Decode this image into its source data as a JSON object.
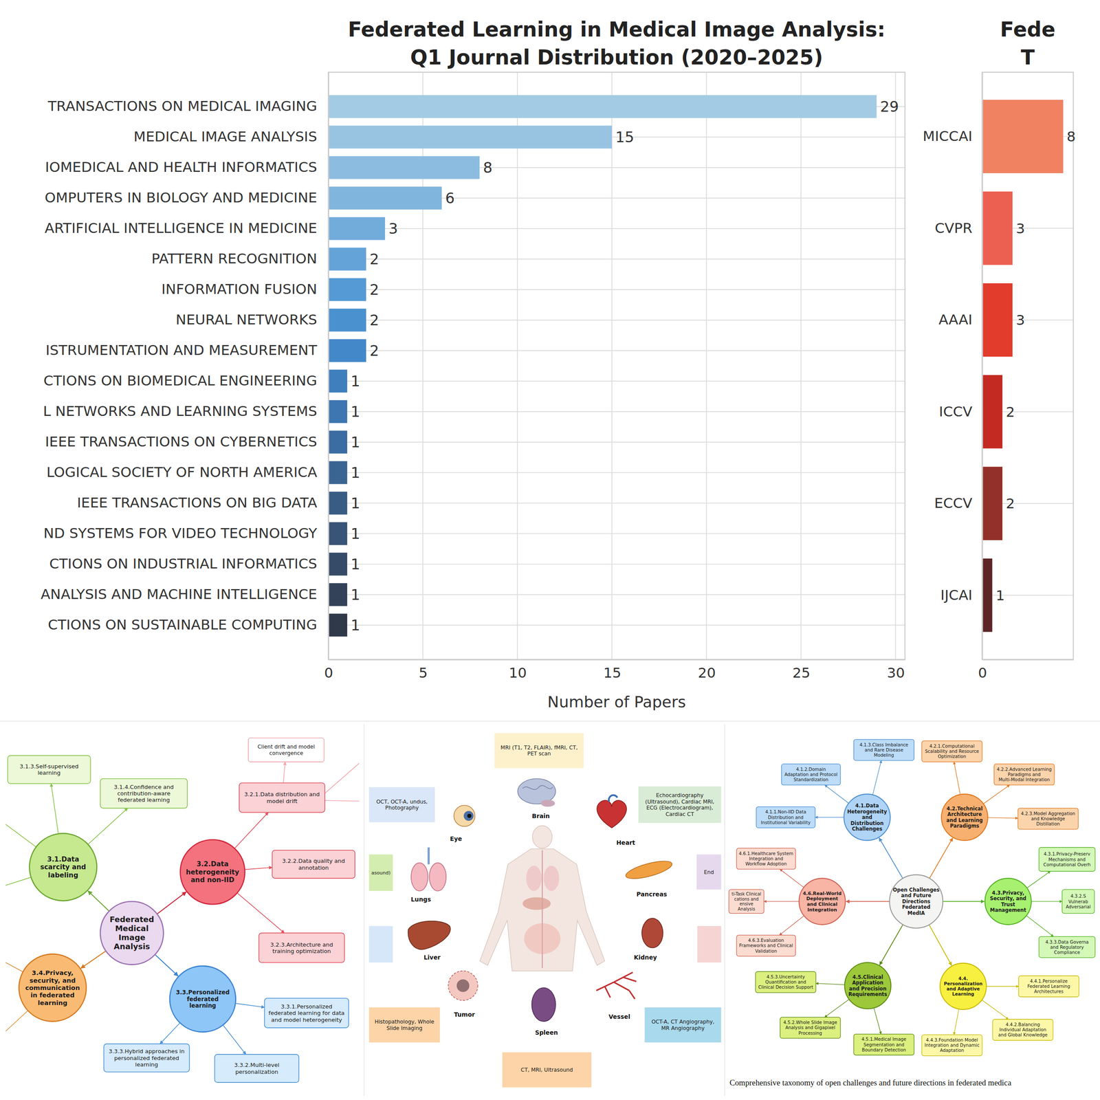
{
  "chart_data": [
    {
      "type": "bar",
      "orientation": "horizontal",
      "title": "Federated Learning in Medical Image Analysis: Q1 Journal Distribution (2020–2025)",
      "xlabel": "Number of Papers",
      "categories": [
        "TRANSACTIONS ON MEDICAL IMAGING",
        "MEDICAL IMAGE ANALYSIS",
        "IOMEDICAL AND HEALTH INFORMATICS",
        "OMPUTERS IN BIOLOGY AND MEDICINE",
        "ARTIFICIAL INTELLIGENCE IN MEDICINE",
        "PATTERN RECOGNITION",
        "INFORMATION FUSION",
        "NEURAL NETWORKS",
        "ISTRUMENTATION AND MEASUREMENT",
        "CTIONS ON BIOMEDICAL ENGINEERING",
        "L NETWORKS AND LEARNING SYSTEMS",
        "IEEE TRANSACTIONS ON CYBERNETICS",
        "LOGICAL SOCIETY OF NORTH AMERICA",
        "IEEE TRANSACTIONS ON BIG DATA",
        "ND SYSTEMS FOR VIDEO TECHNOLOGY",
        "CTIONS ON INDUSTRIAL INFORMATICS",
        "ANALYSIS AND MACHINE INTELLIGENCE",
        "CTIONS ON SUSTAINABLE COMPUTING"
      ],
      "values": [
        29,
        15,
        8,
        6,
        3,
        2,
        2,
        2,
        2,
        1,
        1,
        1,
        1,
        1,
        1,
        1,
        1,
        1
      ],
      "colors": [
        "#a3cbe3",
        "#98c4e2",
        "#8cbde0",
        "#80b5de",
        "#72acdb",
        "#64a3d8",
        "#559ad4",
        "#4a91cf",
        "#4388c8",
        "#3f7fbd",
        "#3d76b0",
        "#3b6da2",
        "#3a6593",
        "#395c84",
        "#385476",
        "#364b67",
        "#334259",
        "#2f394a"
      ],
      "xlim": [
        0,
        30.5
      ],
      "xticks": [
        0,
        5,
        10,
        15,
        20,
        25,
        30
      ],
      "grid": true,
      "data_labels": true
    },
    {
      "type": "bar",
      "orientation": "horizontal",
      "title": "Fede",
      "subtitle": "T",
      "categories": [
        "MICCAI",
        "CVPR",
        "AAAI",
        "ICCV",
        "ECCV",
        "IJCAI"
      ],
      "values": [
        8,
        3,
        3,
        2,
        2,
        1
      ],
      "colors": [
        "#f08262",
        "#eb6050",
        "#e13c2c",
        "#c22a22",
        "#93302a",
        "#5c2626"
      ],
      "xlim": [
        0,
        9
      ],
      "xticks": [
        0
      ],
      "grid": true,
      "data_labels": true
    }
  ],
  "mind_map": {
    "center": "Federated Medical Image Analysis",
    "branches": [
      {
        "label": "3.1.Data scarcity and labeling",
        "children": [
          {
            "label": "3.1.3.Self-supervised learning"
          },
          {
            "label": "3.1.4.Confidence and contribution-aware federated learning"
          }
        ]
      },
      {
        "label": "3.2.Data heterogeneity and non-IID",
        "children": [
          {
            "label": "3.2.1.Data distribution and model drift",
            "children": [
              {
                "label": "Client drift and model convergence"
              }
            ]
          },
          {
            "label": "3.2.2.Data quality and annotation"
          },
          {
            "label": "3.2.3.Architecture and training optimization"
          }
        ]
      },
      {
        "label": "3.3.Personalized federated learning",
        "children": [
          {
            "label": "3.3.1.Personalized federated learning for data and model heterogeneity"
          },
          {
            "label": "3.3.2.Multi-level personalization"
          },
          {
            "label": "3.3.3.Hybrid approaches in personalized federated learning"
          }
        ]
      },
      {
        "label": "3.4.Privacy, security, and communication in federated learning"
      }
    ]
  },
  "body_map": {
    "organs": [
      "Eye",
      "Brain",
      "Heart",
      "Lungs",
      "Pancreas",
      "Liver",
      "Kidney",
      "Tumor",
      "Spleen",
      "Vessel"
    ],
    "modalities": [
      "MRI (T1, T2, FLAIR), fMRI, CT, PET scan",
      "OCT, OCT-A, undus, Photography",
      "Echocardiography (Ultrasound), Cardiac MRI, ECG (Electrocardiogram), Cardiac CT",
      "asound)",
      "End",
      "Histopathology, Whole Slide Imaging",
      "OCT-A, CT Angiography, MR Angiography",
      "CT, MRI, Ultrasound"
    ]
  },
  "taxonomy": {
    "center": "Open Challenges and Future Directions Federated MedIA",
    "branches": [
      {
        "label": "4.1.Data Heterogeneity and Distribution Challenges",
        "children": [
          {
            "label": "4.1.1.Non-IID Data Distribution and Institutional Variability"
          },
          {
            "label": "4.1.2.Domain Adaptation and Protocol Standardization"
          },
          {
            "label": "4.1.3.Class Imbalance and Rare Disease Modeling"
          }
        ]
      },
      {
        "label": "4.2.Technical Architecture and Learning Paradigms",
        "children": [
          {
            "label": "4.2.1.Computational Scalability and Resource Optimization"
          },
          {
            "label": "4.2.2.Advanced Learning Paradigms and Multi-Modal Integration"
          },
          {
            "label": "4.2.3.Model Aggregation and Knowledge Distillation"
          }
        ]
      },
      {
        "label": "4.3.Privacy, Security, and Trust Management",
        "children": [
          {
            "label": "4.3.1.Privacy-Preserv Mechanisms and Computational Overh"
          },
          {
            "label": "4.3.2.S Vulnerab Adversarial"
          },
          {
            "label": "4.3.3.Data Governa and Regulatory Compliance"
          }
        ]
      },
      {
        "label": "4.4. Personalization and Adaptive Learning",
        "children": [
          {
            "label": "4.4.1.Personalize Federated Learning Architectures"
          },
          {
            "label": "4.4.2.Balancing Individual Adaptation and Global Knowledge"
          },
          {
            "label": "4.4.3.Foundation Model Integration and Dynamic Adaptation"
          }
        ]
      },
      {
        "label": "4.5.Clinical Application and Precision Requirements",
        "children": [
          {
            "label": "4.5.1.Medical Image Segmentation and Boundary Detection"
          },
          {
            "label": "4.5.2.Whole Slide Image Analysis and Gigapixel Processing"
          },
          {
            "label": "4.5.3.Uncertainty Quantification and Clinical Decision Support"
          }
        ]
      },
      {
        "label": "4.6.Real-World Deployment and Clinical Integration",
        "children": [
          {
            "label": "4.6.1.Healthcare System Integration and Workflow Adoption"
          },
          {
            "label": "ti-Task Clinical cations and ensive Analysis"
          },
          {
            "label": "4.6.3.Evaluation Frameworks and Clinical Validation"
          }
        ]
      }
    ],
    "caption": "Comprehensive taxonomy of open challenges and future directions in federated medica"
  }
}
